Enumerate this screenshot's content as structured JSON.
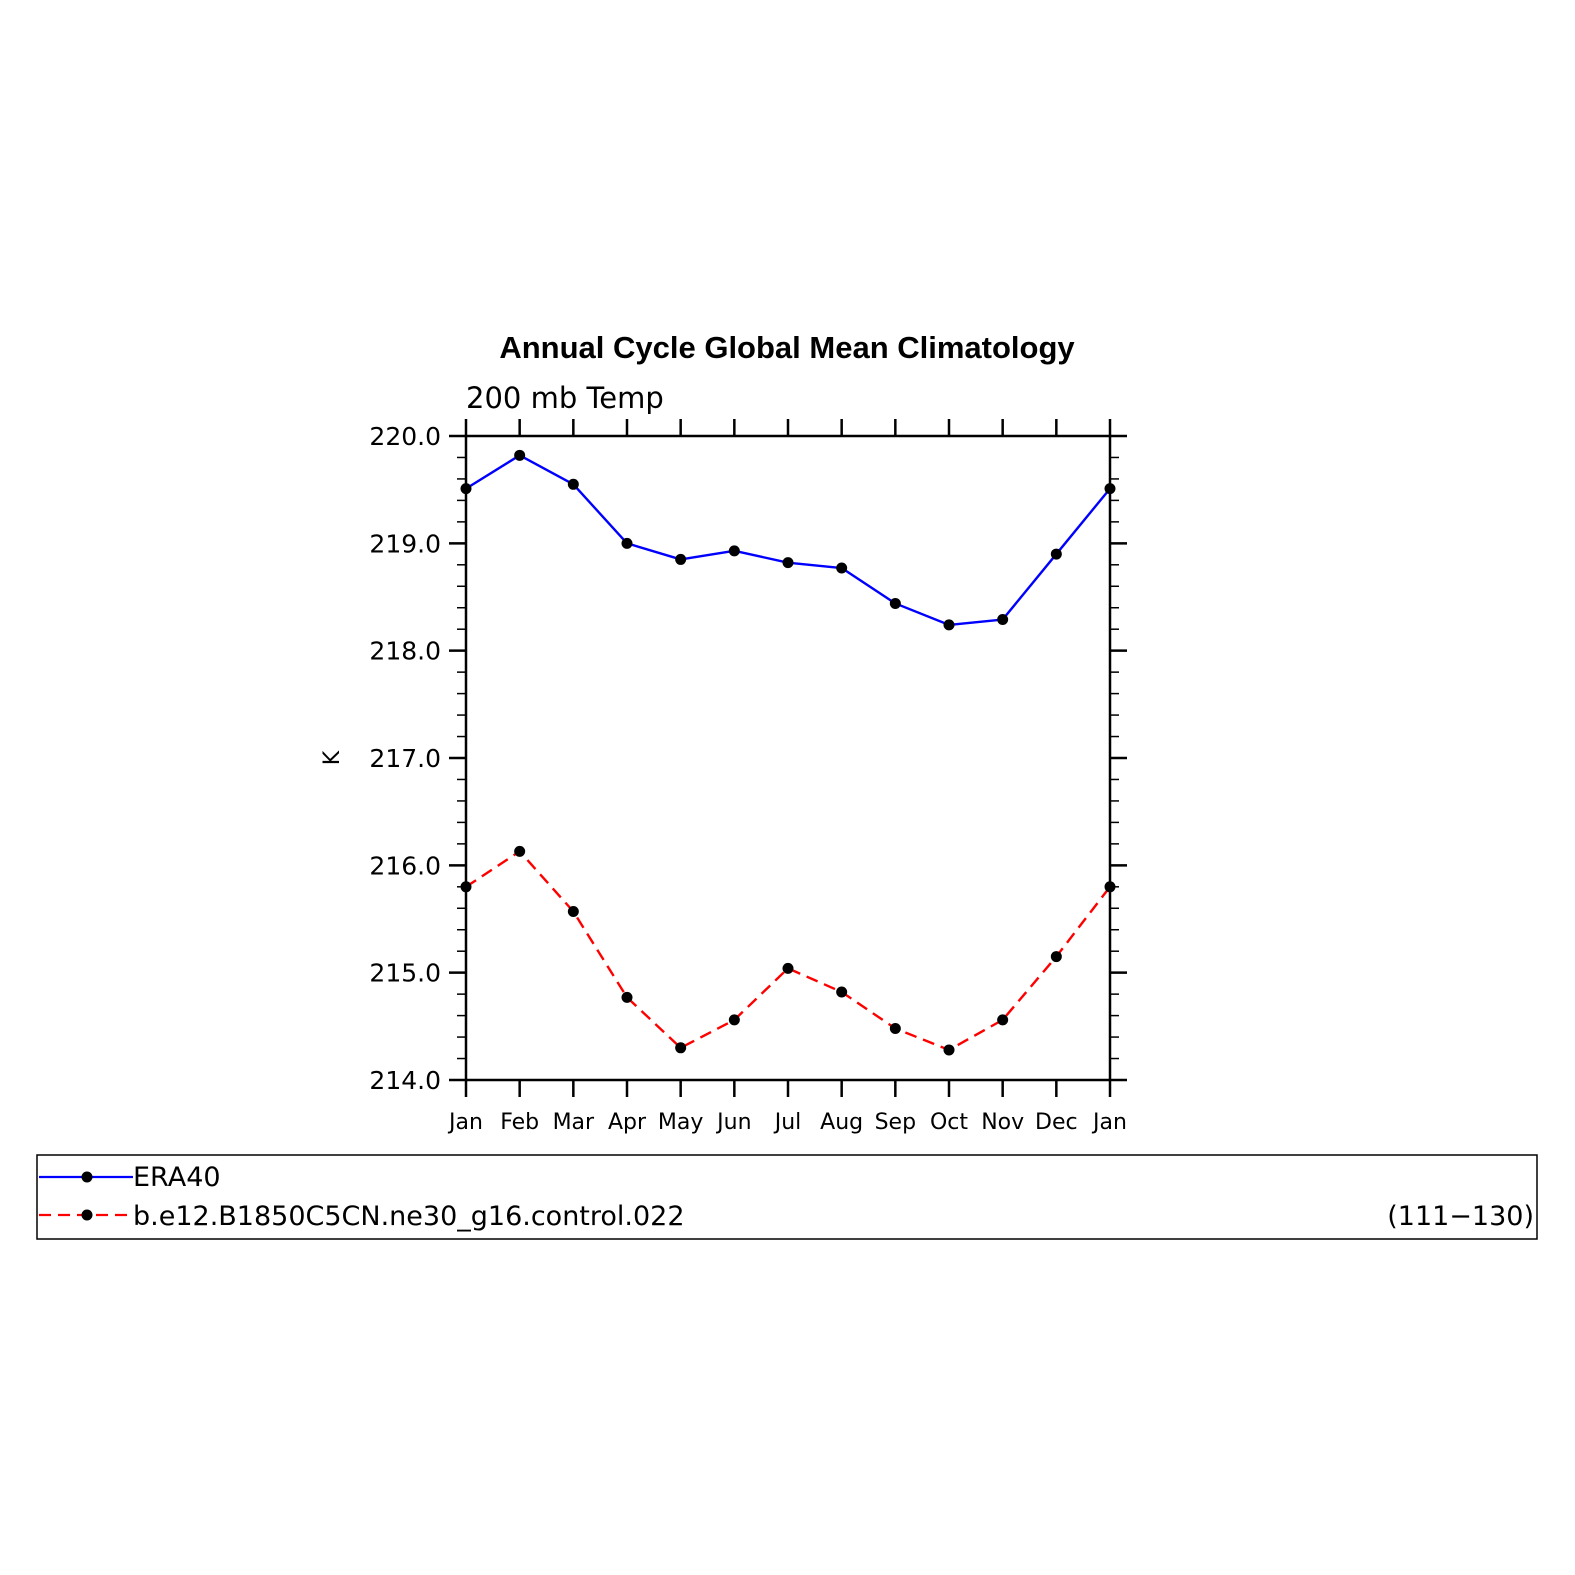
{
  "chart_data": {
    "type": "line",
    "title": "Annual Cycle Global Mean Climatology",
    "subtitle": "200  mb  Temp",
    "ylabel": "K",
    "categories": [
      "Jan",
      "Feb",
      "Mar",
      "Apr",
      "May",
      "Jun",
      "Jul",
      "Aug",
      "Sep",
      "Oct",
      "Nov",
      "Dec",
      "Jan"
    ],
    "ylim": [
      214.0,
      220.0
    ],
    "yticks": [
      "214.0",
      "215.0",
      "216.0",
      "217.0",
      "218.0",
      "219.0",
      "220.0"
    ],
    "grid": false,
    "legend_placement": "bottom",
    "series": [
      {
        "name": "ERA40",
        "color": "#0000ff",
        "dash": "solid",
        "values": [
          219.51,
          219.82,
          219.55,
          219.0,
          218.85,
          218.93,
          218.82,
          218.77,
          218.44,
          218.24,
          218.29,
          218.9,
          219.51
        ]
      },
      {
        "name": "b.e12.B1850C5CN.ne30_g16.control.022",
        "color": "#ff0000",
        "dash": "dashed",
        "values": [
          215.8,
          216.13,
          215.57,
          214.77,
          214.3,
          214.56,
          215.04,
          214.82,
          214.48,
          214.28,
          214.56,
          215.15,
          215.8
        ]
      }
    ],
    "legend_note": "(111−130)"
  }
}
